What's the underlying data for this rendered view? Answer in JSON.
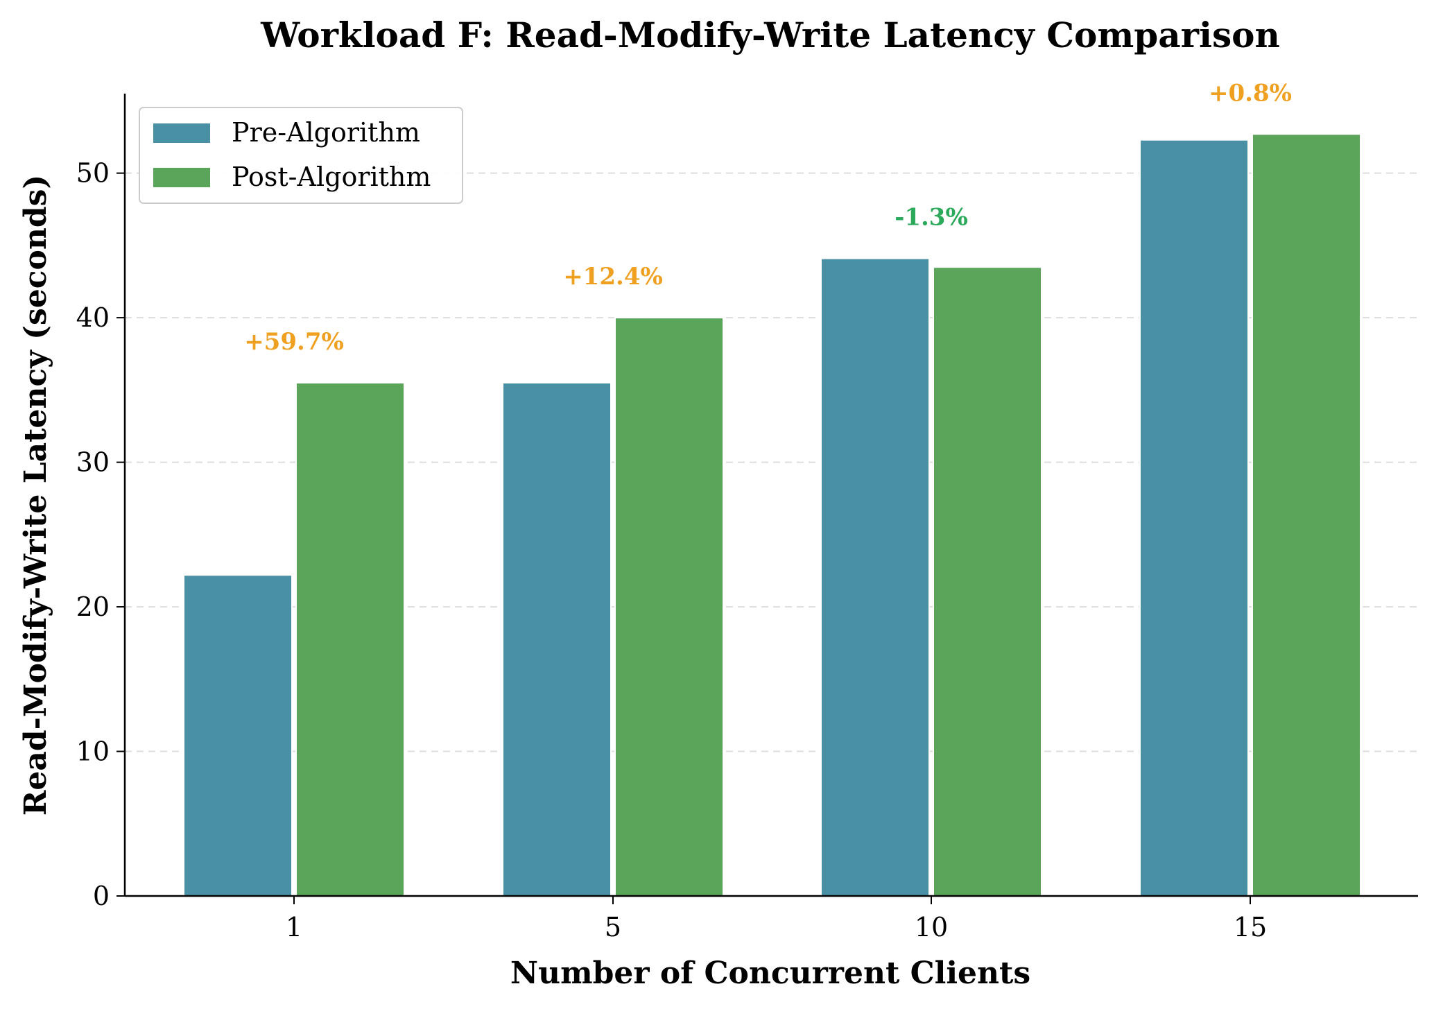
{
  "chart_data": {
    "type": "bar",
    "title": "Workload F: Read-Modify-Write Latency Comparison",
    "xlabel": "Number of Concurrent Clients",
    "ylabel": "Read-Modify-Write Latency (seconds)",
    "categories": [
      "1",
      "5",
      "10",
      "15"
    ],
    "ylim": [
      0,
      55.5
    ],
    "yticks": [
      0,
      10,
      20,
      30,
      40,
      50
    ],
    "grid": "y-dashed",
    "legend_position": "top-left",
    "series": [
      {
        "name": "Pre-Algorithm",
        "color": "#4a90a4",
        "values": [
          22.2,
          35.5,
          44.1,
          52.3
        ]
      },
      {
        "name": "Post-Algorithm",
        "color": "#5ba55a",
        "values": [
          35.5,
          40.0,
          43.5,
          52.7
        ]
      }
    ],
    "annotations": [
      {
        "category": "1",
        "text": "+59.7%",
        "color": "#f0a020"
      },
      {
        "category": "5",
        "text": "+12.4%",
        "color": "#f0a020"
      },
      {
        "category": "10",
        "text": "-1.3%",
        "color": "#2aaa5a"
      },
      {
        "category": "15",
        "text": "+0.8%",
        "color": "#f0a020"
      }
    ]
  }
}
